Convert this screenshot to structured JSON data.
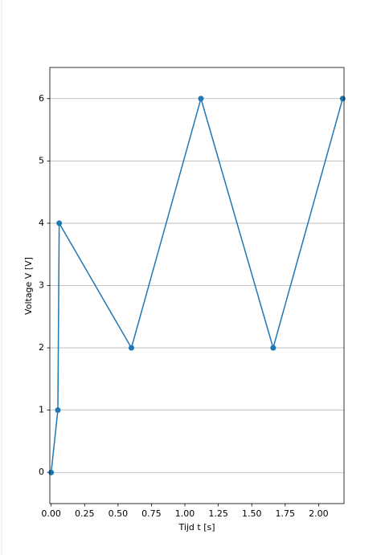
{
  "chart_data": {
    "type": "line",
    "xlabel": "Tijd t [s]",
    "ylabel": "Voltage V [V]",
    "x": [
      0,
      0.05,
      0.06,
      0.6,
      1.12,
      1.66,
      2.18
    ],
    "series": [
      {
        "name": "Voltage",
        "color": "#1f77b4",
        "values": [
          0,
          1,
          4,
          2,
          6,
          2,
          6
        ]
      }
    ],
    "xlim": [
      -0.01,
      2.19
    ],
    "ylim": [
      -0.5,
      6.5
    ],
    "xticks": [
      {
        "value": 0,
        "label": "0.00"
      },
      {
        "value": 0.25,
        "label": "0.25"
      },
      {
        "value": 0.5,
        "label": "0.50"
      },
      {
        "value": 0.75,
        "label": "0.75"
      },
      {
        "value": 1,
        "label": "1.00"
      },
      {
        "value": 1.25,
        "label": "1.25"
      },
      {
        "value": 1.5,
        "label": "1.50"
      },
      {
        "value": 1.75,
        "label": "1.75"
      },
      {
        "value": 2,
        "label": "2.00"
      }
    ],
    "yticks": [
      0,
      1,
      2,
      3,
      4,
      5,
      6
    ],
    "grid": "y"
  }
}
